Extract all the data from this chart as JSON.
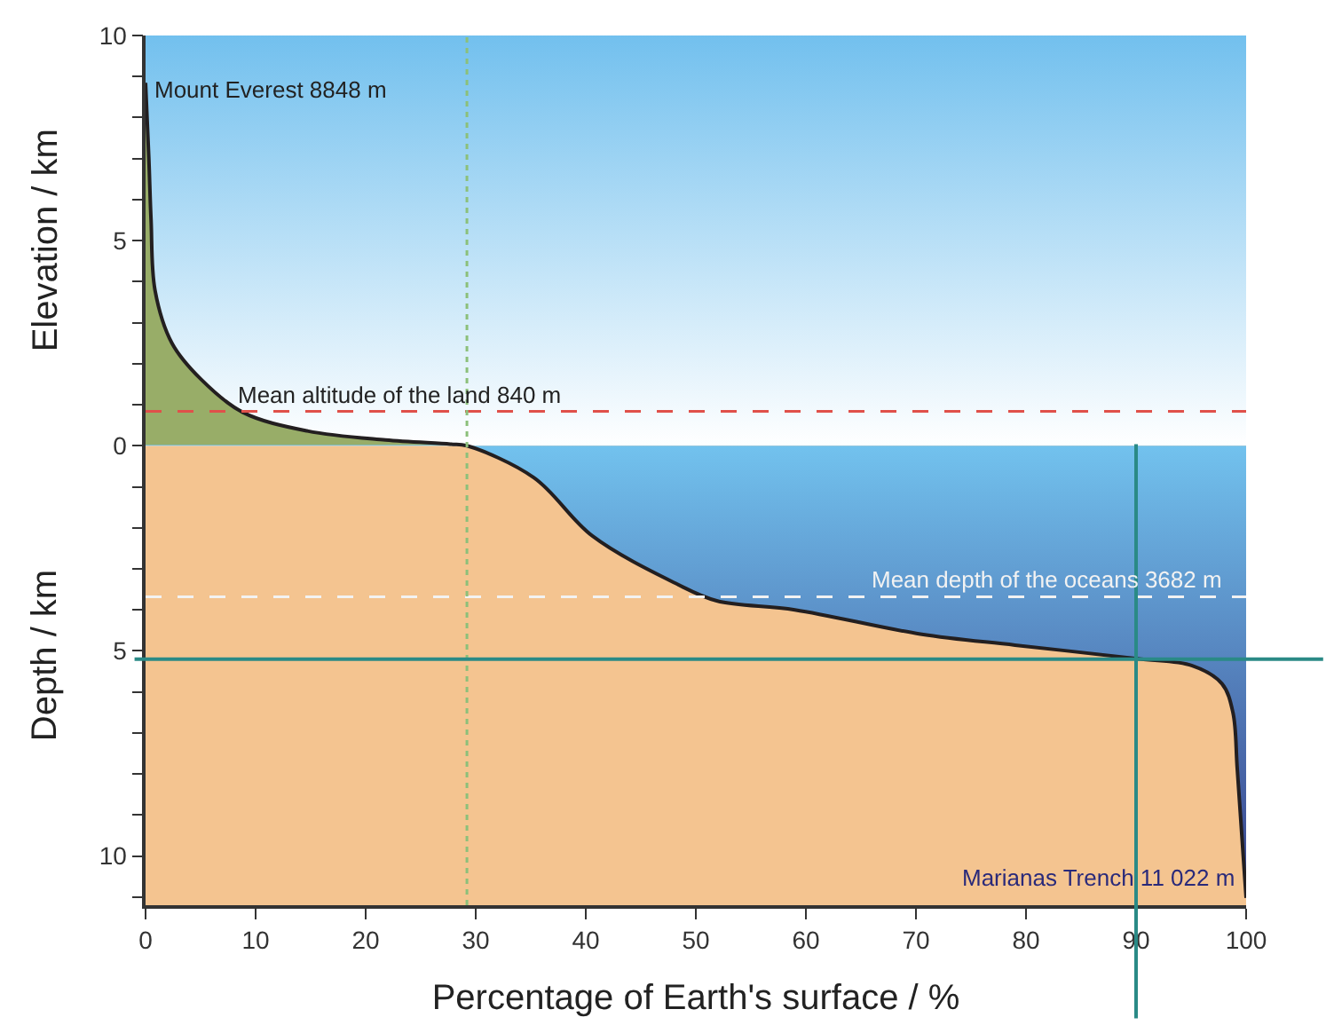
{
  "chart_data": {
    "type": "area",
    "xlabel": "Percentage of Earth's surface / %",
    "ylabel": "Elevation / km",
    "x": [
      0,
      0.3,
      0.5,
      0.86,
      2.4,
      5,
      8.8,
      14.7,
      21.8,
      27.7,
      29.2,
      35.3,
      40.6,
      48.2,
      51.9,
      59,
      70.4,
      79,
      90.1,
      95.1,
      97.8,
      98.8,
      99.2,
      100
    ],
    "series": [
      {
        "color": "#231f20",
        "values": [
          8.848,
          7,
          5.5,
          3.79,
          2.5,
          1.63,
          0.82,
          0.36,
          0.14,
          0.04,
          0,
          -0.78,
          -2.2,
          -3.36,
          -3.78,
          -4.0,
          -4.59,
          -4.86,
          -5.19,
          -5.36,
          -5.8,
          -6.5,
          -7.9,
          -11.022
        ]
      }
    ],
    "xlim": [
      0,
      100
    ],
    "ylim": [
      -11.2,
      10
    ],
    "xticks": [
      0,
      10,
      20,
      30,
      40,
      50,
      60,
      70,
      80,
      90,
      100
    ],
    "yticks": [
      {
        "value": -11,
        "label": null
      },
      {
        "value": -10,
        "label": "10"
      },
      {
        "value": -9,
        "label": null
      },
      {
        "value": -8,
        "label": null
      },
      {
        "value": -7,
        "label": null
      },
      {
        "value": -6,
        "label": null
      },
      {
        "value": -5,
        "label": "5"
      },
      {
        "value": -4,
        "label": null
      },
      {
        "value": -3,
        "label": null
      },
      {
        "value": -2,
        "label": null
      },
      {
        "value": -1,
        "label": null
      },
      0,
      {
        "value": 1,
        "label": null
      },
      {
        "value": 2,
        "label": null
      },
      {
        "value": 3,
        "label": null
      },
      {
        "value": 4,
        "label": null
      },
      5,
      {
        "value": 6,
        "label": null
      },
      {
        "value": 7,
        "label": null
      },
      {
        "value": 8,
        "label": null
      },
      {
        "value": 9,
        "label": null
      },
      10
    ],
    "ref_lines": [
      {
        "axis": "y",
        "value": 0.84,
        "label": "Mean altitude of the land 840 m",
        "color": "#e0504a",
        "line_style": "dashed"
      },
      {
        "axis": "y",
        "value": -3.682,
        "label": "Mean depth of the oceans 3682 m",
        "color": "#f2f2f2",
        "line_style": "dashed"
      },
      {
        "axis": "x",
        "value": 29.2,
        "color": "#8cc07a",
        "line_style": "dotted"
      },
      {
        "axis": "x",
        "value": 90,
        "color": "#2a8a86",
        "line_style": "solid"
      },
      {
        "axis": "y",
        "value": -5.2,
        "color": "#2a8a86",
        "line_style": "solid"
      }
    ],
    "bands": [
      {
        "axis": "y",
        "from": 0,
        "to": 10,
        "color": "#72c0ee"
      },
      {
        "axis": "y",
        "from": -11.2,
        "to": 0,
        "color": "#f4c490"
      }
    ],
    "annotations": [
      "Depth / km",
      {
        "text": "Mount Everest 8848 m",
        "x": 0,
        "y": 8.848
      },
      {
        "text": "Marianas Trench 11 022 m",
        "x": 100,
        "y": -11.022
      }
    ],
    "legend": false
  }
}
